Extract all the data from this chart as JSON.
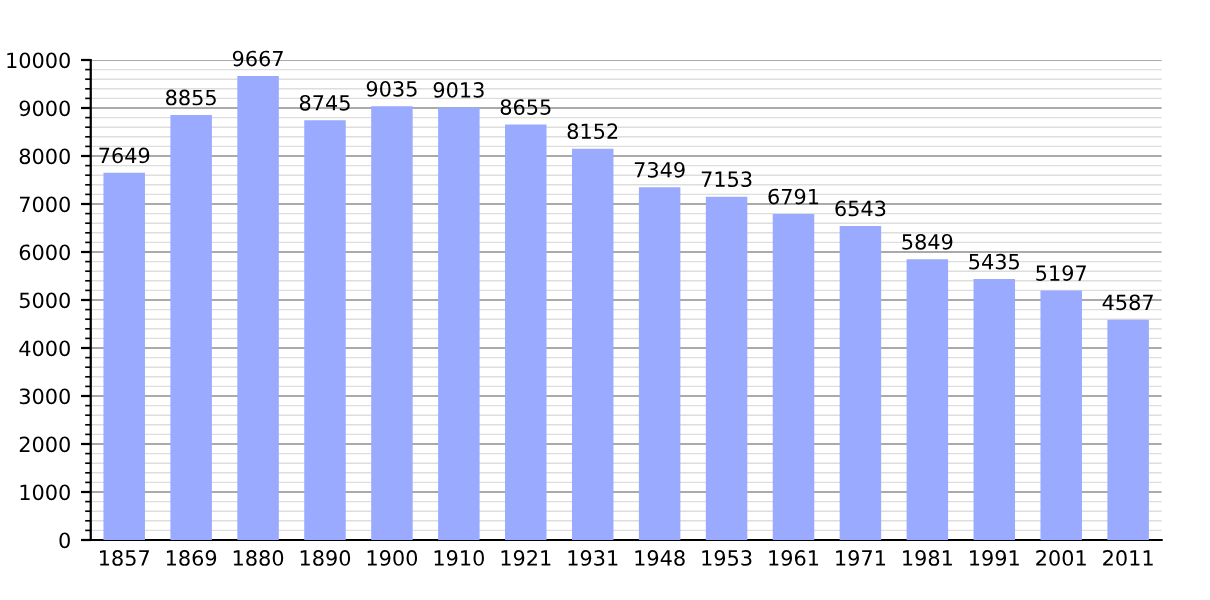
{
  "chart_data": {
    "type": "bar",
    "categories": [
      "1857",
      "1869",
      "1880",
      "1890",
      "1900",
      "1910",
      "1921",
      "1931",
      "1948",
      "1953",
      "1961",
      "1971",
      "1981",
      "1991",
      "2001",
      "2011"
    ],
    "values": [
      7649,
      8855,
      9667,
      8745,
      9035,
      9013,
      8655,
      8152,
      7349,
      7153,
      6791,
      6543,
      5849,
      5435,
      5197,
      4587
    ],
    "color": "#99aaff",
    "ylim": [
      0,
      10000
    ],
    "yticks": [
      0,
      1000,
      2000,
      3000,
      4000,
      5000,
      6000,
      7000,
      8000,
      9000,
      10000
    ],
    "grid": true,
    "data_labels": true
  }
}
